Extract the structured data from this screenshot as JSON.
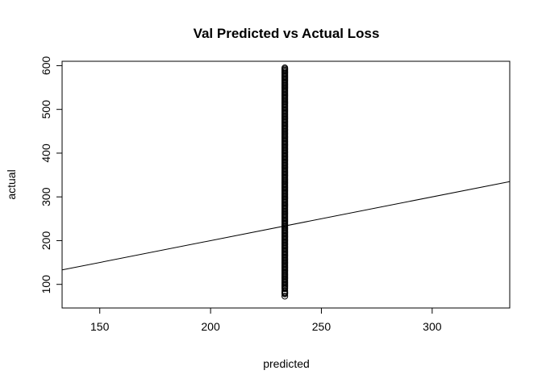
{
  "chart_data": {
    "type": "scatter",
    "title": "Val Predicted vs Actual Loss",
    "xlabel": "predicted",
    "ylabel": "actual",
    "xlim": [
      133,
      335
    ],
    "ylim": [
      46,
      610
    ],
    "x_ticks": [
      150,
      200,
      250,
      300
    ],
    "y_ticks": [
      100,
      200,
      300,
      400,
      500,
      600
    ],
    "grid": false,
    "legend": "none",
    "series": [
      {
        "marker": "open-circle",
        "color": "#000000",
        "x_value": 233.5,
        "y_dense_range": [
          90,
          597
        ],
        "y_sparse_points": [
          85,
          82,
          80,
          78,
          73
        ]
      }
    ],
    "reference_line": {
      "type": "identity",
      "slope": 1,
      "intercept": 0,
      "color": "#000000"
    }
  }
}
